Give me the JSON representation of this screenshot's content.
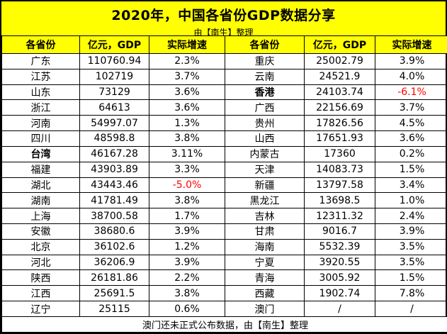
{
  "colors": {
    "accent_yellow": "#FFFF00",
    "negative_red": "#FF0000",
    "text_black": "#000000",
    "border_black": "#000000",
    "row_white": "#FFFFFF"
  },
  "chart_data": {
    "type": "table",
    "title": "2020年，中国各省份GDP数据分享",
    "subtitle": "由【南生】整理",
    "columns": [
      "各省份",
      "亿元，GDP",
      "实际增速"
    ],
    "layout": "two side-by-side province tables, yellow title band and yellow header row, white data rows, negative growth rates in red, 台湾 and 香港 names in bold",
    "left_rows": [
      {
        "name": "广东",
        "gdp": "110760.94",
        "growth": "2.3%"
      },
      {
        "name": "江苏",
        "gdp": "102719",
        "growth": "3.7%"
      },
      {
        "name": "山东",
        "gdp": "73129",
        "growth": "3.6%"
      },
      {
        "name": "浙江",
        "gdp": "64613",
        "growth": "3.6%"
      },
      {
        "name": "河南",
        "gdp": "54997.07",
        "growth": "1.3%"
      },
      {
        "name": "四川",
        "gdp": "48598.8",
        "growth": "3.8%"
      },
      {
        "name": "台湾",
        "gdp": "46167.28",
        "growth": "3.11%",
        "bold": true
      },
      {
        "name": "福建",
        "gdp": "43903.89",
        "growth": "3.3%"
      },
      {
        "name": "湖北",
        "gdp": "43443.46",
        "growth": "-5.0%",
        "negative": true
      },
      {
        "name": "湖南",
        "gdp": "41781.49",
        "growth": "3.8%"
      },
      {
        "name": "上海",
        "gdp": "38700.58",
        "growth": "1.7%"
      },
      {
        "name": "安徽",
        "gdp": "38680.6",
        "growth": "3.9%"
      },
      {
        "name": "北京",
        "gdp": "36102.6",
        "growth": "1.2%"
      },
      {
        "name": "河北",
        "gdp": "36206.9",
        "growth": "3.9%"
      },
      {
        "name": "陕西",
        "gdp": "26181.86",
        "growth": "2.2%"
      },
      {
        "name": "江西",
        "gdp": "25691.5",
        "growth": "3.8%"
      },
      {
        "name": "辽宁",
        "gdp": "25115",
        "growth": "0.6%"
      }
    ],
    "right_rows": [
      {
        "name": "重庆",
        "gdp": "25002.79",
        "growth": "3.9%"
      },
      {
        "name": "云南",
        "gdp": "24521.9",
        "growth": "4.0%"
      },
      {
        "name": "香港",
        "gdp": "24103.74",
        "growth": "-6.1%",
        "bold": true,
        "negative": true
      },
      {
        "name": "广西",
        "gdp": "22156.69",
        "growth": "3.7%"
      },
      {
        "name": "贵州",
        "gdp": "17826.56",
        "growth": "4.5%"
      },
      {
        "name": "山西",
        "gdp": "17651.93",
        "growth": "3.6%"
      },
      {
        "name": "内蒙古",
        "gdp": "17360",
        "growth": "0.2%"
      },
      {
        "name": "天津",
        "gdp": "14083.73",
        "growth": "1.5%"
      },
      {
        "name": "新疆",
        "gdp": "13797.58",
        "growth": "3.4%"
      },
      {
        "name": "黑龙江",
        "gdp": "13698.5",
        "growth": "1.0%"
      },
      {
        "name": "吉林",
        "gdp": "12311.32",
        "growth": "2.4%"
      },
      {
        "name": "甘肃",
        "gdp": "9016.7",
        "growth": "3.9%"
      },
      {
        "name": "海南",
        "gdp": "5532.39",
        "growth": "3.5%"
      },
      {
        "name": "宁夏",
        "gdp": "3920.55",
        "growth": "3.5%"
      },
      {
        "name": "青海",
        "gdp": "3005.92",
        "growth": "1.5%"
      },
      {
        "name": "西藏",
        "gdp": "1902.74",
        "growth": "7.8%"
      },
      {
        "name": "澳门",
        "gdp": "/",
        "growth": "/"
      }
    ],
    "footnote": "澳门还未正式公布数据，由【南生】整理"
  }
}
